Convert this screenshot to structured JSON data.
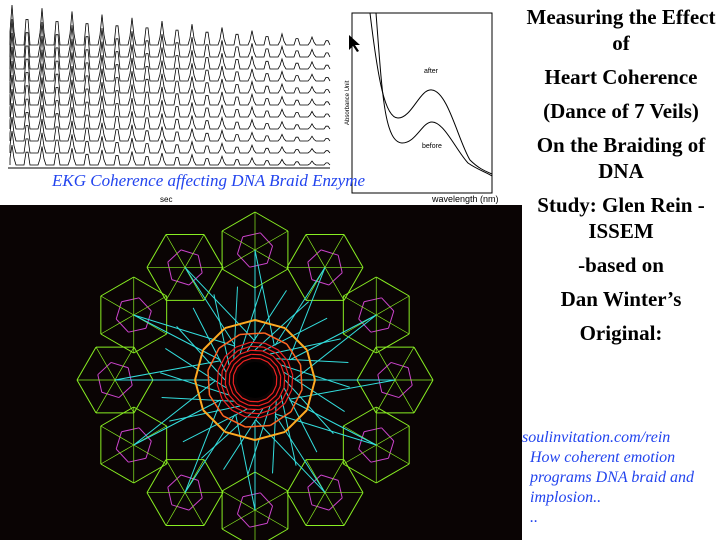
{
  "ekg_figure": {
    "caption": "EKG Coherence affecting DNA Braid Enzyme",
    "x_label": "sec"
  },
  "spectrum_figure": {
    "y_label": "Absorbance Unit",
    "x_label": "wavelength (nm)",
    "after_label": "after",
    "before_label": "before"
  },
  "title_lines": [
    "Measuring the Effect of",
    "Heart Coherence",
    "(Dance of 7 Veils)",
    "On the Braiding of DNA",
    "Study: Glen Rein - ISSEM",
    "-based on",
    "Dan Winter’s",
    "Original:"
  ],
  "links": {
    "url": "soulinvitation.com/rein",
    "description": "How coherent emotion programs DNA braid and implosion..",
    "ellipsis": ".."
  },
  "colors": {
    "link": "#2244ee",
    "art_bg": "#0a0404"
  }
}
